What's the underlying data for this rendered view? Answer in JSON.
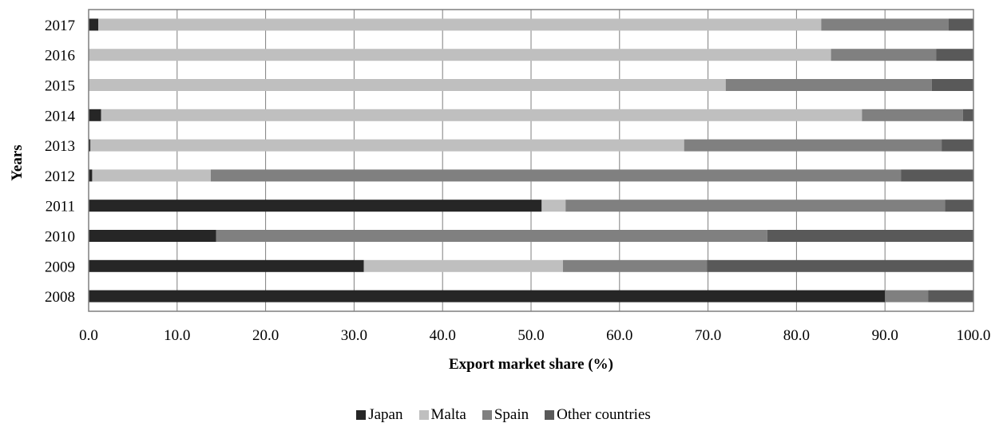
{
  "chart_data": {
    "type": "bar",
    "orientation": "horizontal",
    "stacked": true,
    "categories": [
      "2017",
      "2016",
      "2015",
      "2014",
      "2013",
      "2012",
      "2011",
      "2010",
      "2009",
      "2008"
    ],
    "series": [
      {
        "name": "Japan",
        "color": "#262626",
        "values": [
          1.1,
          0,
          0,
          1.4,
          0.2,
          0.4,
          51.2,
          14.4,
          31.1,
          90.0
        ]
      },
      {
        "name": "Malta",
        "color": "#bfbfbf",
        "values": [
          81.7,
          83.9,
          72.0,
          86.0,
          67.1,
          13.4,
          2.7,
          0,
          22.5,
          0
        ]
      },
      {
        "name": "Spain",
        "color": "#808080",
        "values": [
          14.4,
          11.9,
          23.3,
          11.4,
          29.1,
          78.0,
          42.9,
          62.3,
          16.3,
          4.9
        ]
      },
      {
        "name": "Other countries",
        "color": "#595959",
        "values": [
          2.8,
          4.2,
          4.7,
          1.2,
          3.6,
          8.2,
          3.2,
          23.3,
          30.1,
          5.1
        ]
      }
    ],
    "xlabel": "Export market share (%)",
    "ylabel": "Years",
    "xlim": [
      0,
      100
    ],
    "xticks": [
      "0.0",
      "10.0",
      "20.0",
      "30.0",
      "40.0",
      "50.0",
      "60.0",
      "70.0",
      "80.0",
      "90.0",
      "100.0"
    ],
    "grid": true,
    "legend_position": "bottom"
  }
}
